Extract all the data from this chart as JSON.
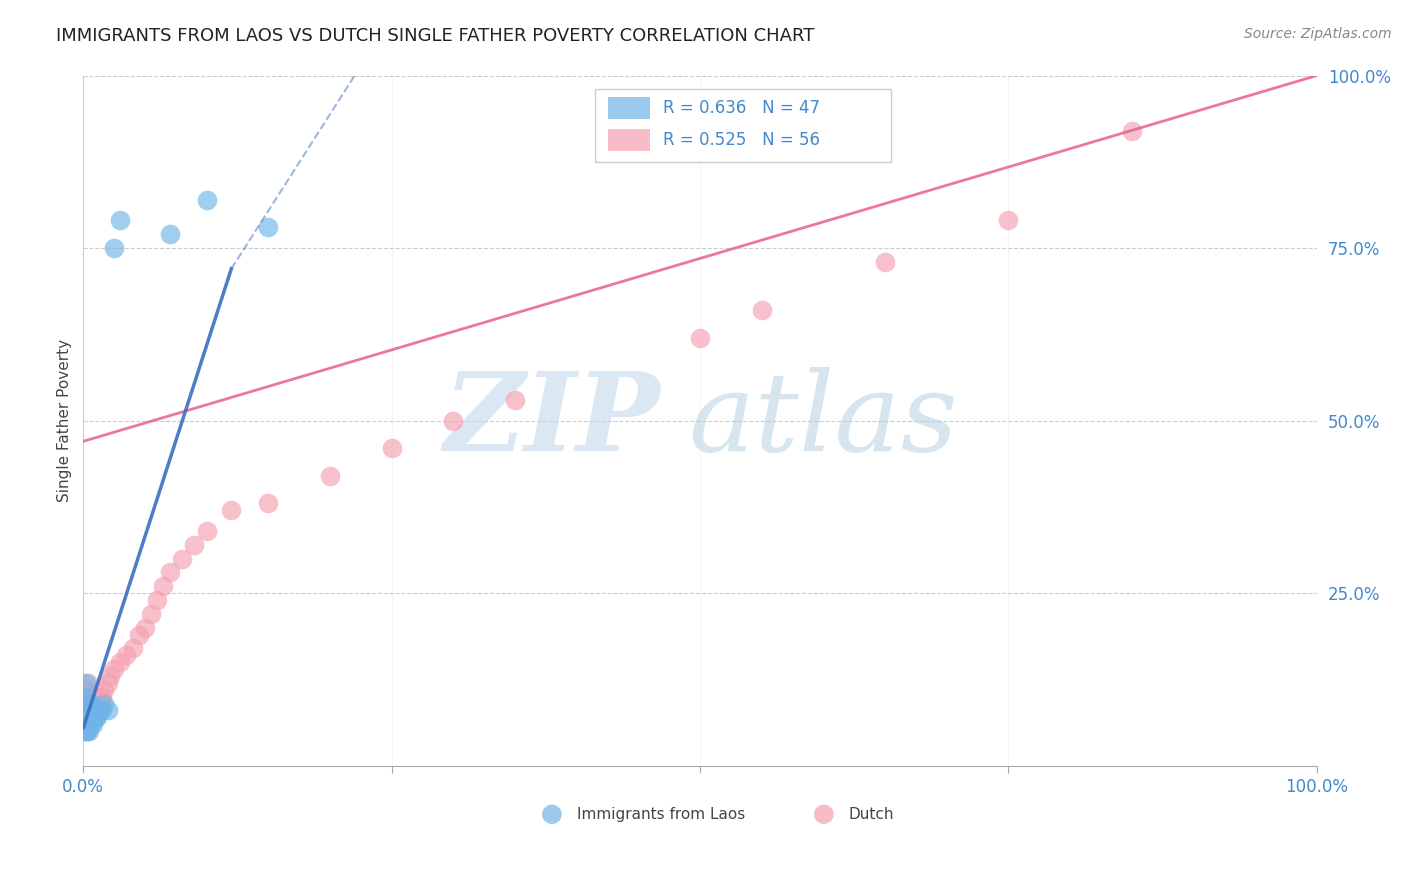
{
  "title": "IMMIGRANTS FROM LAOS VS DUTCH SINGLE FATHER POVERTY CORRELATION CHART",
  "source": "Source: ZipAtlas.com",
  "ylabel": "Single Father Poverty",
  "blue_color": "#6EB4E8",
  "pink_color": "#F4A0B0",
  "blue_line_color": "#3B6FBF",
  "pink_line_color": "#E8608A",
  "watermark_zip": "ZIP",
  "watermark_atlas": "atlas",
  "background_color": "#FFFFFF",
  "xlim": [
    0.0,
    1.0
  ],
  "ylim": [
    0.0,
    1.0
  ],
  "legend_r1": "R = 0.636",
  "legend_n1": "N = 47",
  "legend_r2": "R = 0.525",
  "legend_n2": "N = 56",
  "blue_x": [
    0.001,
    0.001,
    0.001,
    0.001,
    0.001,
    0.002,
    0.002,
    0.002,
    0.002,
    0.002,
    0.003,
    0.003,
    0.003,
    0.003,
    0.003,
    0.004,
    0.004,
    0.004,
    0.004,
    0.005,
    0.005,
    0.005,
    0.005,
    0.006,
    0.006,
    0.006,
    0.007,
    0.007,
    0.007,
    0.008,
    0.008,
    0.008,
    0.009,
    0.009,
    0.01,
    0.01,
    0.011,
    0.012,
    0.013,
    0.015,
    0.017,
    0.02,
    0.025,
    0.03,
    0.07,
    0.1,
    0.15
  ],
  "blue_y": [
    0.05,
    0.06,
    0.07,
    0.08,
    0.09,
    0.05,
    0.06,
    0.08,
    0.1,
    0.12,
    0.05,
    0.06,
    0.07,
    0.08,
    0.09,
    0.06,
    0.07,
    0.08,
    0.09,
    0.05,
    0.06,
    0.08,
    0.09,
    0.06,
    0.07,
    0.09,
    0.07,
    0.08,
    0.09,
    0.06,
    0.07,
    0.08,
    0.07,
    0.08,
    0.07,
    0.08,
    0.07,
    0.08,
    0.08,
    0.08,
    0.09,
    0.08,
    0.75,
    0.79,
    0.77,
    0.82,
    0.78
  ],
  "pink_x": [
    0.001,
    0.001,
    0.002,
    0.002,
    0.003,
    0.003,
    0.003,
    0.004,
    0.004,
    0.004,
    0.005,
    0.005,
    0.005,
    0.006,
    0.006,
    0.006,
    0.007,
    0.007,
    0.008,
    0.008,
    0.009,
    0.009,
    0.01,
    0.01,
    0.011,
    0.012,
    0.013,
    0.014,
    0.015,
    0.017,
    0.02,
    0.022,
    0.025,
    0.03,
    0.035,
    0.04,
    0.045,
    0.05,
    0.055,
    0.06,
    0.065,
    0.07,
    0.08,
    0.09,
    0.1,
    0.12,
    0.15,
    0.2,
    0.25,
    0.3,
    0.35,
    0.5,
    0.55,
    0.65,
    0.75,
    0.85
  ],
  "pink_y": [
    0.07,
    0.09,
    0.07,
    0.1,
    0.06,
    0.08,
    0.11,
    0.07,
    0.09,
    0.12,
    0.07,
    0.08,
    0.1,
    0.07,
    0.09,
    0.1,
    0.08,
    0.1,
    0.08,
    0.09,
    0.08,
    0.1,
    0.08,
    0.09,
    0.09,
    0.09,
    0.1,
    0.1,
    0.1,
    0.11,
    0.12,
    0.13,
    0.14,
    0.15,
    0.16,
    0.17,
    0.19,
    0.2,
    0.22,
    0.24,
    0.26,
    0.28,
    0.3,
    0.32,
    0.34,
    0.37,
    0.38,
    0.42,
    0.46,
    0.5,
    0.53,
    0.62,
    0.66,
    0.73,
    0.79,
    0.92
  ],
  "pink_line_start_x": 0.0,
  "pink_line_start_y": 0.47,
  "pink_line_end_x": 1.0,
  "pink_line_end_y": 1.0,
  "blue_line_solid_start_x": 0.0,
  "blue_line_solid_start_y": 0.055,
  "blue_line_solid_end_x": 0.12,
  "blue_line_solid_end_y": 0.72,
  "blue_line_dash_start_x": 0.12,
  "blue_line_dash_start_y": 0.72,
  "blue_line_dash_end_x": 0.22,
  "blue_line_dash_end_y": 1.0
}
